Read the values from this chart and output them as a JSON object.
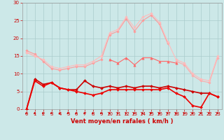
{
  "x": [
    0,
    1,
    2,
    3,
    4,
    5,
    6,
    7,
    8,
    9,
    10,
    11,
    12,
    13,
    14,
    15,
    16,
    17,
    18,
    19,
    20,
    21,
    22,
    23
  ],
  "series": [
    {
      "name": "light_pink_line1",
      "color": "#ff9999",
      "linewidth": 0.8,
      "marker": "D",
      "markersize": 1.8,
      "values": [
        16.5,
        15.5,
        13.5,
        11.5,
        11.0,
        11.5,
        12.0,
        12.0,
        13.0,
        14.0,
        21.0,
        22.0,
        25.5,
        22.0,
        25.0,
        26.5,
        24.0,
        18.5,
        null,
        null,
        null,
        null,
        null,
        null
      ]
    },
    {
      "name": "light_pink_line2",
      "color": "#ffaaaa",
      "linewidth": 0.8,
      "marker": "D",
      "markersize": 1.8,
      "values": [
        16.0,
        15.0,
        null,
        null,
        null,
        null,
        null,
        null,
        null,
        null,
        null,
        null,
        null,
        null,
        null,
        null,
        null,
        null,
        13.5,
        12.5,
        9.5,
        8.0,
        7.5,
        14.5
      ]
    },
    {
      "name": "medium_pink_mid",
      "color": "#ff6666",
      "linewidth": 0.8,
      "marker": "^",
      "markersize": 2.5,
      "values": [
        null,
        null,
        null,
        null,
        null,
        null,
        null,
        null,
        null,
        null,
        14.0,
        13.0,
        14.5,
        12.5,
        14.5,
        14.5,
        13.5,
        13.5,
        13.0,
        null,
        null,
        null,
        null,
        null
      ]
    },
    {
      "name": "dark_red1",
      "color": "#cc0000",
      "linewidth": 1.2,
      "marker": "D",
      "markersize": 2.0,
      "values": [
        0.0,
        8.5,
        7.0,
        7.5,
        6.0,
        5.5,
        5.5,
        8.0,
        6.5,
        6.0,
        6.5,
        6.0,
        6.5,
        6.0,
        6.5,
        6.5,
        6.0,
        6.5,
        6.0,
        5.5,
        5.0,
        4.5,
        4.5,
        3.5
      ]
    },
    {
      "name": "dark_red2",
      "color": "#ee0000",
      "linewidth": 1.2,
      "marker": "D",
      "markersize": 2.0,
      "values": [
        0.0,
        8.0,
        6.5,
        7.5,
        6.0,
        5.5,
        5.0,
        4.5,
        4.0,
        4.5,
        5.5,
        5.5,
        5.5,
        5.5,
        5.5,
        5.5,
        5.5,
        6.0,
        4.5,
        3.5,
        1.0,
        0.5,
        4.5,
        3.5
      ]
    },
    {
      "name": "pink_wide_upper",
      "color": "#ffbbbb",
      "linewidth": 0.8,
      "marker": "D",
      "markersize": 1.8,
      "values": [
        16.0,
        15.0,
        14.0,
        12.0,
        11.5,
        12.0,
        12.5,
        12.5,
        13.5,
        15.0,
        21.5,
        22.5,
        26.0,
        23.0,
        26.0,
        27.0,
        24.5,
        19.0,
        14.0,
        13.0,
        10.0,
        8.5,
        8.0,
        15.0
      ]
    }
  ],
  "xlim": [
    -0.5,
    23.5
  ],
  "ylim": [
    0,
    30
  ],
  "yticks": [
    0,
    5,
    10,
    15,
    20,
    25,
    30
  ],
  "xticks": [
    0,
    1,
    2,
    3,
    4,
    5,
    6,
    7,
    8,
    9,
    10,
    11,
    12,
    13,
    14,
    15,
    16,
    17,
    18,
    19,
    20,
    21,
    22,
    23
  ],
  "xlabel": "Vent moyen/en rafales ( km/h )",
  "xlabel_color": "#cc0000",
  "xlabel_fontsize": 6,
  "background_color": "#cce8e8",
  "grid_color": "#aacccc",
  "tick_color": "#cc0000",
  "tick_fontsize": 5,
  "arrow_color": "#cc0000"
}
